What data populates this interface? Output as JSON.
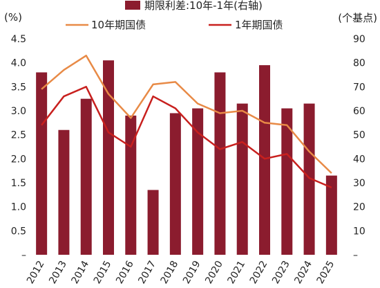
{
  "chart_data": {
    "type": "bar-line",
    "categories": [
      "2012",
      "2013",
      "2014",
      "2015",
      "2016",
      "2017",
      "2018",
      "2019",
      "2020",
      "2021",
      "2022",
      "2023",
      "2024",
      "2025"
    ],
    "series": [
      {
        "name": "期限利差:10年-1年(右轴)",
        "kind": "bar",
        "axis": "right",
        "color": "#8b1c2e",
        "values": [
          76,
          52,
          65,
          81,
          58,
          27,
          59,
          61,
          76,
          63,
          79,
          61,
          63,
          33
        ]
      },
      {
        "name": "10年期国债",
        "kind": "line",
        "axis": "left",
        "color": "#e88a46",
        "values": [
          3.45,
          3.85,
          4.15,
          3.35,
          2.85,
          3.55,
          3.6,
          3.15,
          2.95,
          3.0,
          2.75,
          2.7,
          2.15,
          1.7
        ]
      },
      {
        "name": "1年期国债",
        "kind": "line",
        "axis": "left",
        "color": "#c8201e",
        "values": [
          2.7,
          3.3,
          3.5,
          2.55,
          2.25,
          3.3,
          3.05,
          2.55,
          2.2,
          2.35,
          2.0,
          2.1,
          1.6,
          1.4
        ]
      }
    ],
    "left_axis": {
      "unit": "(%)",
      "ylim": [
        0,
        4.5
      ],
      "tick_labels": [
        "–",
        "0.5",
        "1.0",
        "1.5",
        "2.0",
        "2.5",
        "3.0",
        "3.5",
        "4.0",
        "4.5"
      ]
    },
    "right_axis": {
      "unit": "(个基点)",
      "ylim": [
        0,
        90
      ],
      "tick_labels": [
        "–",
        "10",
        "20",
        "30",
        "40",
        "50",
        "60",
        "70",
        "80",
        "90"
      ]
    },
    "grid": false,
    "legend": "top"
  }
}
